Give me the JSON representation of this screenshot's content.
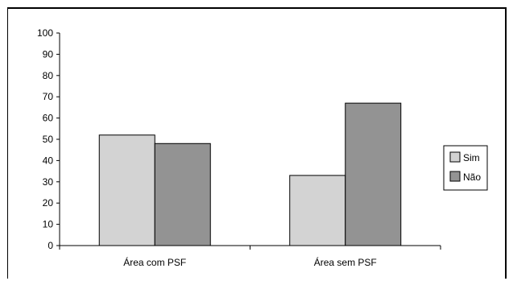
{
  "chart_data": {
    "type": "bar",
    "categories": [
      "Área com PSF",
      "Área sem PSF"
    ],
    "series": [
      {
        "name": "Sim",
        "values": [
          52,
          33
        ],
        "color": "#d3d3d3"
      },
      {
        "name": "Não",
        "values": [
          48,
          67
        ],
        "color": "#939393"
      }
    ],
    "title": "",
    "xlabel": "",
    "ylabel": "",
    "ylim": [
      0,
      100
    ],
    "yticks": [
      0,
      10,
      20,
      30,
      40,
      50,
      60,
      70,
      80,
      90,
      100
    ],
    "grid": false,
    "legend_position": "right"
  }
}
